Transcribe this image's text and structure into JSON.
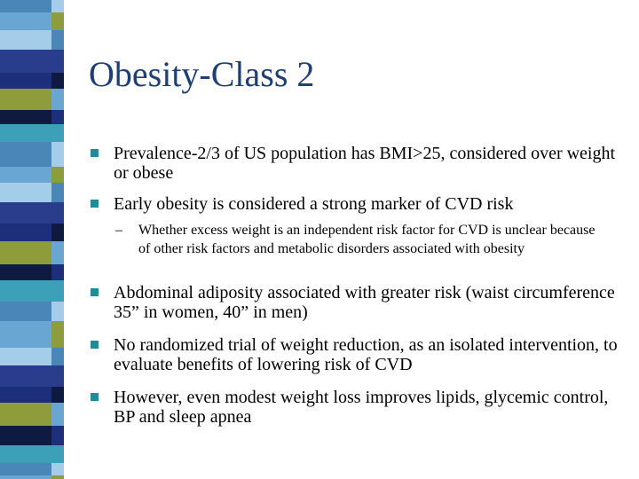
{
  "slide": {
    "title": "Obesity-Class 2",
    "bullets_top": [
      "Prevalence-2/3 of US population has BMI>25, considered over weight or obese",
      "Early obesity is considered a strong marker of CVD risk"
    ],
    "sub_bullet": {
      "marker": "–",
      "text": "Whether excess weight is an independent risk factor for CVD is unclear because of other risk factors and metabolic disorders associated with obesity"
    },
    "bullets_bottom": [
      "Abdominal adiposity associated with greater risk (waist circumference 35” in women, 40” in men)",
      "No randomized trial of weight reduction, as an isolated intervention, to evaluate benefits of lowering risk of CVD",
      "However, even modest weight loss improves lipids, glycemic control, BP and sleep apnea"
    ]
  },
  "colors": {
    "title": "#1f3f73",
    "bullet_marker": "#1e8d98",
    "stripe_palette": [
      "#4a86b8",
      "#6aa6d4",
      "#a3cde8",
      "#2a3c8c",
      "#1d2f7a",
      "#8e9c3c",
      "#0f1a40",
      "#3ca0b8"
    ]
  }
}
